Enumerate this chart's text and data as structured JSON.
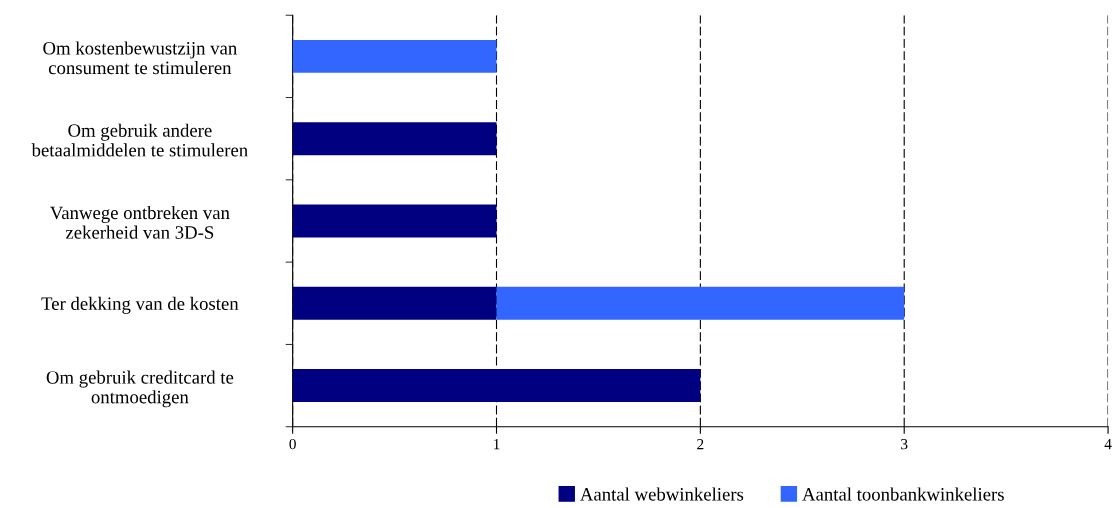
{
  "chart_data": {
    "type": "bar",
    "orientation": "horizontal",
    "stacked": true,
    "categories": [
      "Om kostenbewustzijn van\nconsument te stimuleren",
      "Om gebruik andere\nbetaalmiddelen te stimuleren",
      "Vanwege ontbreken van\nzekerheid van 3D-S",
      "Ter dekking van de kosten",
      "Om gebruik creditcard te\nontmoedigen"
    ],
    "series": [
      {
        "name": "Aantal webwinkeliers",
        "color": "#000080",
        "values": [
          null,
          1,
          1,
          1,
          2
        ]
      },
      {
        "name": "Aantal toonbankwinkeliers",
        "color": "#3366ff",
        "values": [
          1,
          null,
          null,
          2,
          null
        ]
      }
    ],
    "xlim": [
      0,
      4
    ],
    "xticks": [
      0,
      1,
      2,
      3,
      4
    ],
    "grid": "x",
    "legend": "bottom"
  }
}
